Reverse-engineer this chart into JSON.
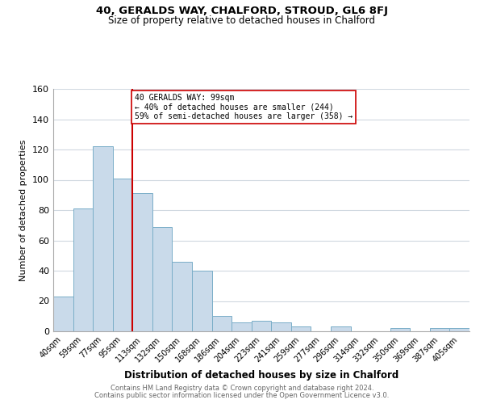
{
  "title": "40, GERALDS WAY, CHALFORD, STROUD, GL6 8FJ",
  "subtitle": "Size of property relative to detached houses in Chalford",
  "xlabel": "Distribution of detached houses by size in Chalford",
  "ylabel": "Number of detached properties",
  "bar_labels": [
    "40sqm",
    "59sqm",
    "77sqm",
    "95sqm",
    "113sqm",
    "132sqm",
    "150sqm",
    "168sqm",
    "186sqm",
    "204sqm",
    "223sqm",
    "241sqm",
    "259sqm",
    "277sqm",
    "296sqm",
    "314sqm",
    "332sqm",
    "350sqm",
    "369sqm",
    "387sqm",
    "405sqm"
  ],
  "bar_values": [
    23,
    81,
    122,
    101,
    91,
    69,
    46,
    40,
    10,
    6,
    7,
    6,
    3,
    0,
    3,
    0,
    0,
    2,
    0,
    2,
    2
  ],
  "bar_color": "#c9daea",
  "bar_edge_color": "#7aaec8",
  "vline_x": 3.5,
  "vline_color": "#cc0000",
  "annotation_text": "40 GERALDS WAY: 99sqm\n← 40% of detached houses are smaller (244)\n59% of semi-detached houses are larger (358) →",
  "annotation_box_edgecolor": "#cc0000",
  "annotation_box_facecolor": "#ffffff",
  "ylim": [
    0,
    160
  ],
  "yticks": [
    0,
    20,
    40,
    60,
    80,
    100,
    120,
    140,
    160
  ],
  "footer_line1": "Contains HM Land Registry data © Crown copyright and database right 2024.",
  "footer_line2": "Contains public sector information licensed under the Open Government Licence v3.0.",
  "background_color": "#ffffff",
  "grid_color": "#d0d8e0"
}
